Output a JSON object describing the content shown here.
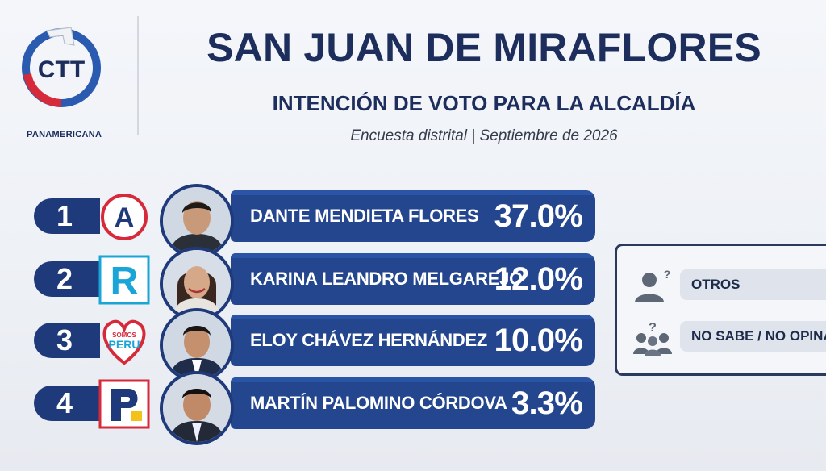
{
  "brand": {
    "logo_text": "CTT",
    "logo_subtitle": "PANAMERICANA"
  },
  "header": {
    "title": "SAN JUAN DE MIRAFLORES",
    "subtitle": "INTENCIÓN DE VOTO PARA LA ALCALDÍA",
    "meta": "Encuesta distrital | Septiembre de 2026"
  },
  "chart_data": {
    "type": "bar",
    "title": "SAN JUAN DE MIRAFLORES",
    "subtitle": "INTENCIÓN DE VOTO PARA LA ALCALDÍA",
    "categories": [
      "DANTE MENDIETA FLORES",
      "KARINA LEANDRO MELGAREJO",
      "ELOY CHÁVEZ HERNÁNDEZ",
      "MARTÍN PALOMINO CÓRDOVA"
    ],
    "values": [
      37.0,
      12.0,
      10.0,
      3.3
    ],
    "value_labels": [
      "37.0%",
      "12.0%",
      "10.0%",
      "3.3%"
    ],
    "ranks": [
      "1",
      "2",
      "3",
      "4"
    ],
    "parties": [
      {
        "icon": "party-a-logo",
        "text": "A",
        "color": "#d62a3a"
      },
      {
        "icon": "party-r-logo",
        "text": "R",
        "color": "#1aa5d8"
      },
      {
        "icon": "somos-peru-logo",
        "text": "SOMOS PERU",
        "color": "#d62a3a"
      },
      {
        "icon": "party-p-logo",
        "text": "P",
        "color": "#1f3a7a"
      }
    ],
    "other_categories": [
      "OTROS",
      "NO SABE / NO OPINA"
    ]
  },
  "colors": {
    "navy": "#1d2d5c",
    "bar": "#23468e",
    "accent_red": "#d62a3a",
    "accent_blue": "#2a5bb0"
  }
}
